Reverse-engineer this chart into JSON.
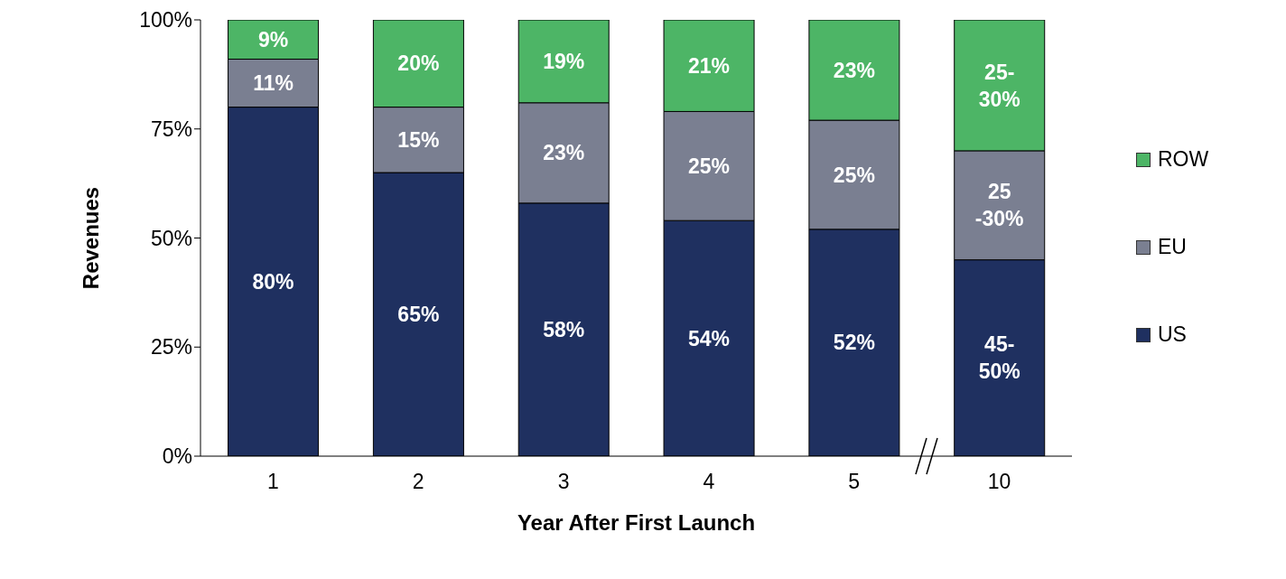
{
  "chart_data": {
    "type": "bar",
    "stacked": true,
    "xlabel": "Year After First Launch",
    "ylabel": "Revenues",
    "categories": [
      "1",
      "2",
      "3",
      "4",
      "5",
      "10"
    ],
    "series": [
      {
        "name": "US",
        "color": "#1f3060",
        "values": [
          80,
          65,
          58,
          54,
          52,
          45
        ],
        "value_labels": [
          "80%",
          "65%",
          "58%",
          "54%",
          "52%",
          "45-\n50%"
        ]
      },
      {
        "name": "EU",
        "color": "#7a7f91",
        "values": [
          11,
          15,
          23,
          25,
          25,
          25
        ],
        "value_labels": [
          "11%",
          "15%",
          "23%",
          "25%",
          "25%",
          "25\n-30%"
        ]
      },
      {
        "name": "ROW",
        "color": "#4db566",
        "values": [
          9,
          20,
          19,
          21,
          23,
          30
        ],
        "value_labels": [
          "9%",
          "20%",
          "19%",
          "21%",
          "23%",
          "25-\n30%"
        ]
      }
    ],
    "ylim": [
      0,
      100
    ],
    "yticks": [
      {
        "value": 0,
        "label": "0%"
      },
      {
        "value": 25,
        "label": "25%"
      },
      {
        "value": 50,
        "label": "50%"
      },
      {
        "value": 75,
        "label": "75%"
      },
      {
        "value": 100,
        "label": "100%"
      }
    ],
    "legend": "right",
    "grid": false
  }
}
